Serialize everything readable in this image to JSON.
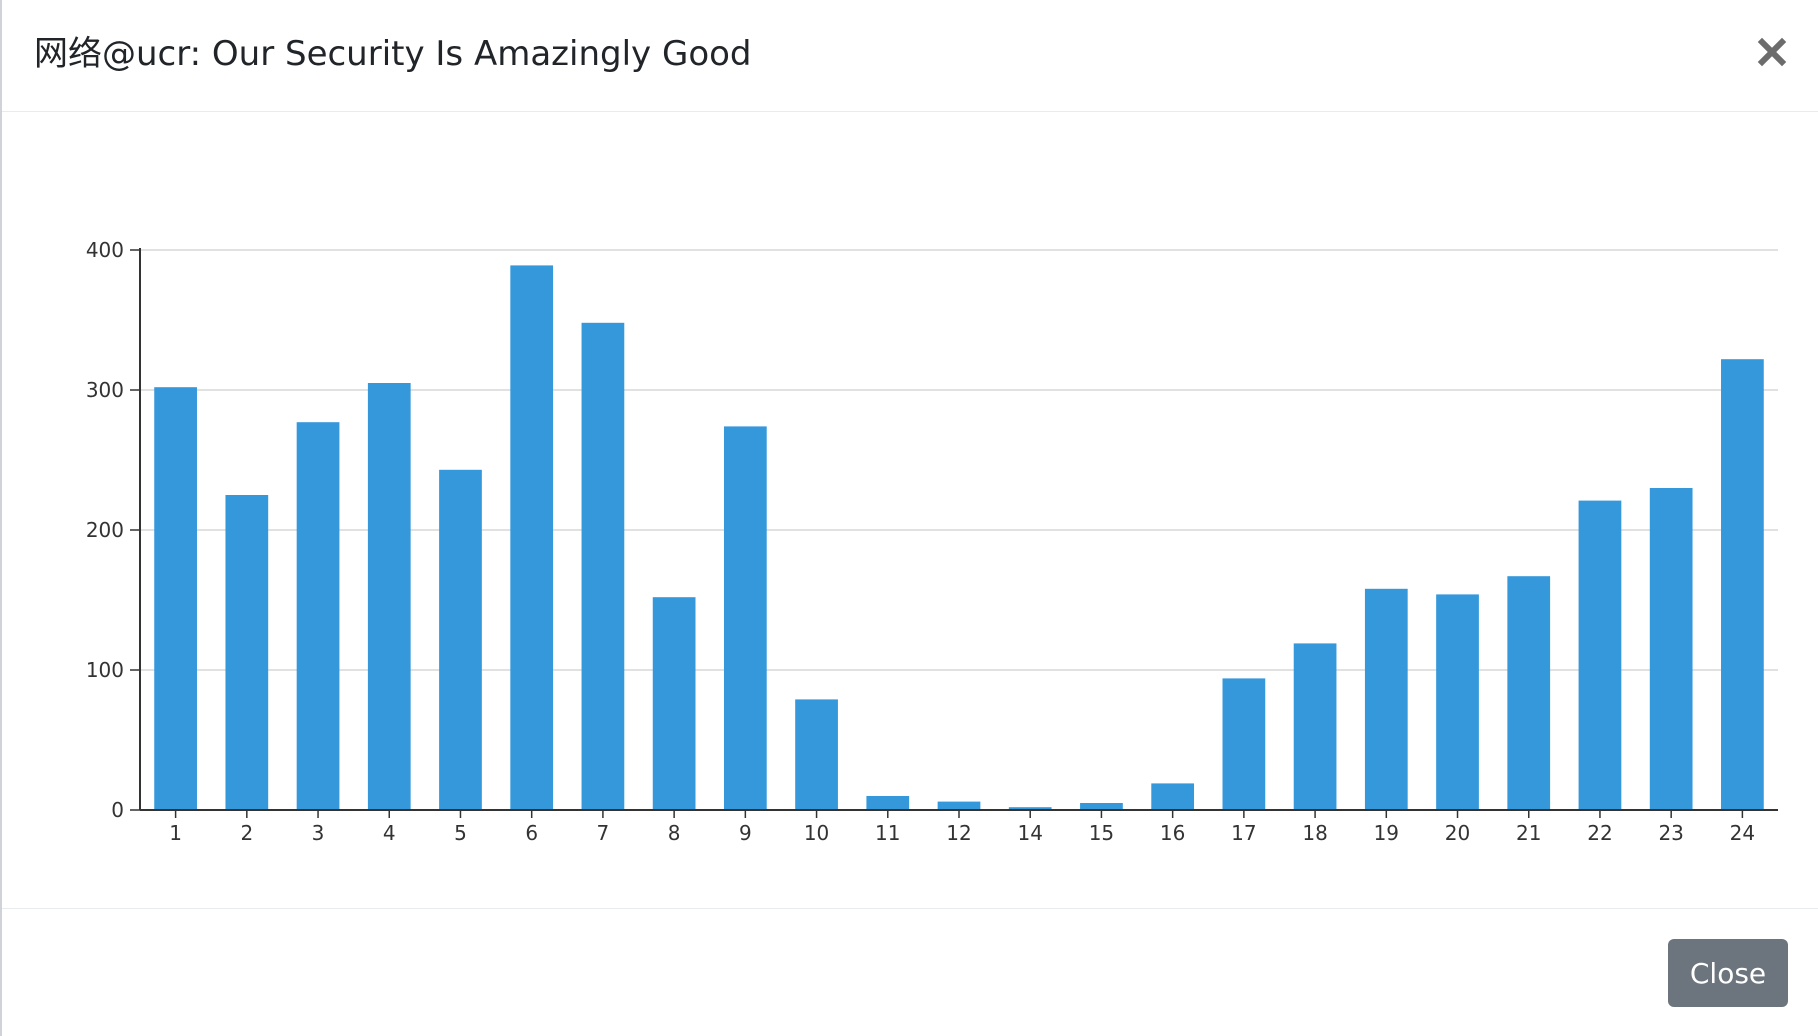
{
  "modal": {
    "title": "网络@ucr: Our Security Is Amazingly Good",
    "close_label": "Close"
  },
  "colors": {
    "bar": "#3498db",
    "gridline": "#d7d7d7",
    "axis": "#333333",
    "close_button_bg": "#6c757d",
    "close_x": "#6c6c6c"
  },
  "icons": {
    "close": "close-icon"
  },
  "chart_data": {
    "type": "bar",
    "categories": [
      "1",
      "2",
      "3",
      "4",
      "5",
      "6",
      "7",
      "8",
      "9",
      "10",
      "11",
      "12",
      "14",
      "15",
      "16",
      "17",
      "18",
      "19",
      "20",
      "21",
      "22",
      "23",
      "24"
    ],
    "values": [
      302,
      225,
      277,
      305,
      243,
      389,
      348,
      152,
      274,
      79,
      10,
      6,
      2,
      5,
      19,
      94,
      119,
      158,
      154,
      167,
      221,
      230,
      322
    ],
    "title": "",
    "xlabel": "",
    "ylabel": "",
    "ylim": [
      0,
      400
    ],
    "yticks": [
      "0",
      "100",
      "200",
      "300",
      "400"
    ],
    "grid": true
  }
}
